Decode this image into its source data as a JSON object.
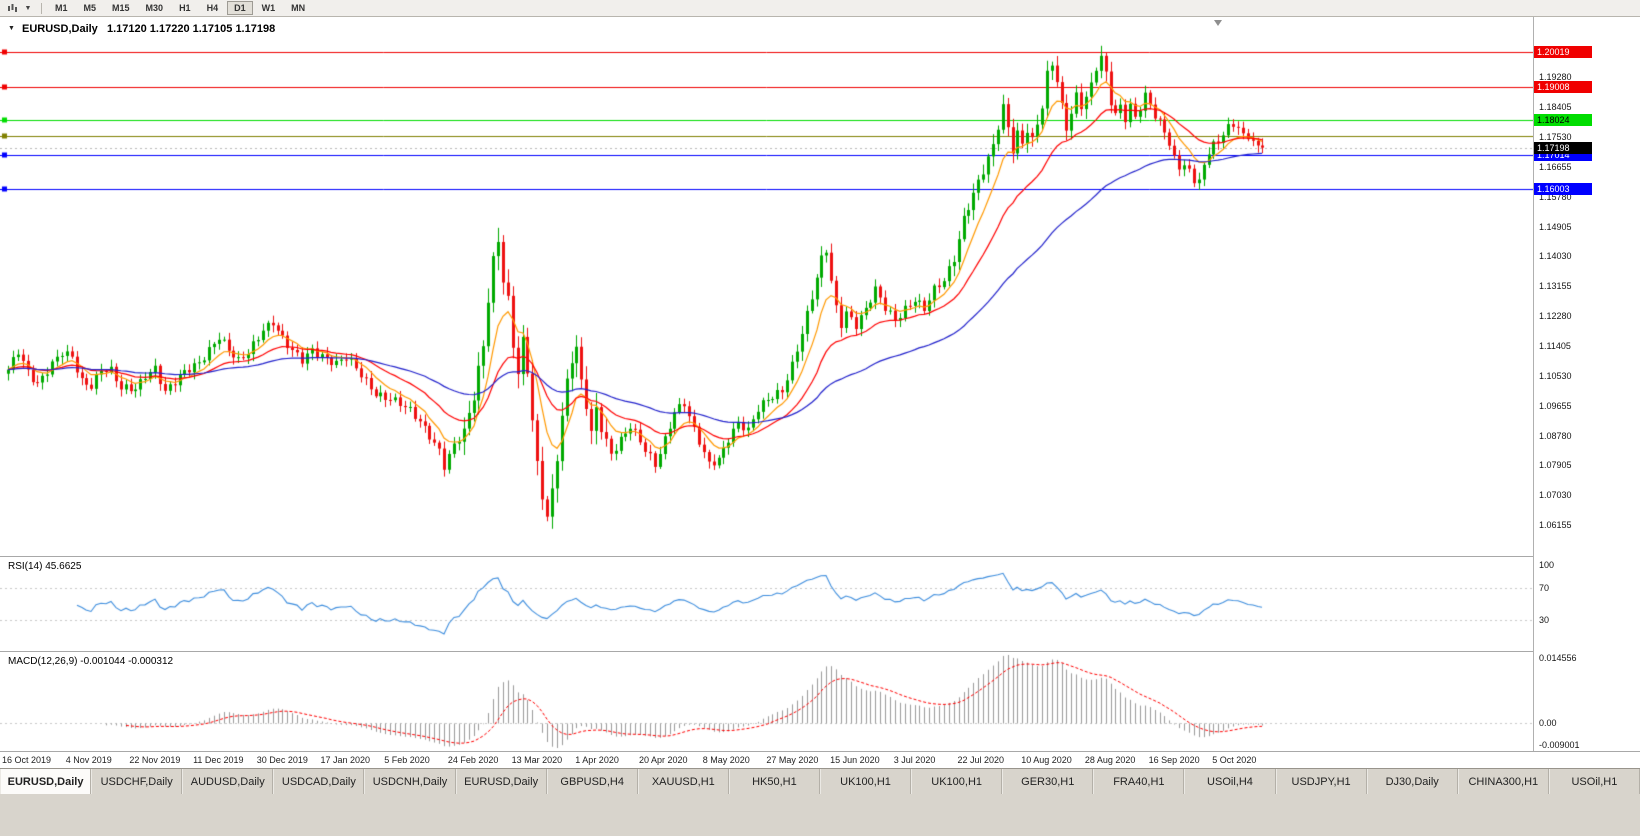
{
  "icons": {
    "toolbar_chart_icon": "candlestick-chart",
    "toolbar_caret": "▼",
    "info_caret": "▼",
    "shift_marker": "triangle-down"
  },
  "toolbar": {
    "timeframes": [
      "M1",
      "M5",
      "M15",
      "M30",
      "H1",
      "H4",
      "D1",
      "W1",
      "MN"
    ],
    "active_timeframe": "D1"
  },
  "chart": {
    "info": {
      "symbol": "EURUSD,Daily",
      "ohlc": "1.17120 1.17220 1.17105 1.17198"
    }
  },
  "chart_data": {
    "type": "candlestick",
    "title": "EURUSD,Daily",
    "ohlc_display": {
      "open": "1.17120",
      "high": "1.17220",
      "low": "1.17105",
      "close": "1.17198"
    },
    "num_candles": 257,
    "bars_per_label": 13,
    "x_labels": [
      "16 Oct 2019",
      "4 Nov 2019",
      "22 Nov 2019",
      "11 Dec 2019",
      "30 Dec 2019",
      "17 Jan 2020",
      "5 Feb 2020",
      "24 Feb 2020",
      "13 Mar 2020",
      "1 Apr 2020",
      "20 Apr 2020",
      "8 May 2020",
      "27 May 2020",
      "15 Jun 2020",
      "3 Jul 2020",
      "22 Jul 2020",
      "10 Aug 2020",
      "28 Aug 2020",
      "16 Sep 2020",
      "5 Oct 2020"
    ],
    "price_axis": {
      "top_price": 1.2105,
      "bottom_price": 1.0525,
      "ticks": [
        "1.19280",
        "1.18405",
        "1.17530",
        "1.16655",
        "1.15780",
        "1.14905",
        "1.14030",
        "1.13155",
        "1.12280",
        "1.11405",
        "1.10530",
        "1.09655",
        "1.08780",
        "1.07905",
        "1.07030",
        "1.06155"
      ]
    },
    "hlines": [
      {
        "price": 1.20019,
        "label": "1.20019",
        "color": "#F00000",
        "text": "#ffffff"
      },
      {
        "price": 1.19008,
        "label": "1.19008",
        "color": "#F00000",
        "text": "#ffffff"
      },
      {
        "price": 1.18024,
        "label": "1.18024",
        "color": "#00DD00",
        "text": "#000000"
      },
      {
        "price": 1.1756,
        "label": null,
        "color": "#808000",
        "text": "#ffffff"
      },
      {
        "price": 1.17014,
        "label": "1.17014",
        "color": "#0000FF",
        "text": "#ffffff"
      },
      {
        "price": 1.16003,
        "label": "1.16003",
        "color": "#0000FF",
        "text": "#ffffff"
      }
    ],
    "current_price": {
      "value": 1.17198,
      "label": "1.17198",
      "flag_bg": "#000000",
      "flag_text": "#ffffff"
    },
    "candle_colors": {
      "up": "#00AA00",
      "down": "#EE1111"
    },
    "moving_averages": [
      {
        "period": 8,
        "color": "#FF9900"
      },
      {
        "period": 21,
        "color": "#FF0000"
      },
      {
        "period": 55,
        "color": "#2222CC"
      }
    ],
    "close_anchors": [
      [
        0,
        1.1065
      ],
      [
        2,
        1.1125
      ],
      [
        4,
        1.107
      ],
      [
        6,
        1.1035
      ],
      [
        9,
        1.1085
      ],
      [
        11,
        1.1115
      ],
      [
        13,
        1.1105
      ],
      [
        15,
        1.104
      ],
      [
        17,
        1.103
      ],
      [
        19,
        1.1075
      ],
      [
        21,
        1.1065
      ],
      [
        23,
        1.101
      ],
      [
        26,
        1.1015
      ],
      [
        28,
        1.106
      ],
      [
        30,
        1.108
      ],
      [
        32,
        1.1005
      ],
      [
        34,
        1.103
      ],
      [
        36,
        1.106
      ],
      [
        39,
        1.1095
      ],
      [
        41,
        1.1135
      ],
      [
        43,
        1.117
      ],
      [
        45,
        1.1125
      ],
      [
        47,
        1.109
      ],
      [
        49,
        1.112
      ],
      [
        52,
        1.1195
      ],
      [
        54,
        1.1215
      ],
      [
        56,
        1.116
      ],
      [
        58,
        1.112
      ],
      [
        60,
        1.1095
      ],
      [
        62,
        1.113
      ],
      [
        65,
        1.111
      ],
      [
        67,
        1.109
      ],
      [
        69,
        1.1105
      ],
      [
        71,
        1.107
      ],
      [
        73,
        1.1035
      ],
      [
        75,
        1.1005
      ],
      [
        78,
        1.099
      ],
      [
        80,
        1.097
      ],
      [
        82,
        1.0945
      ],
      [
        84,
        1.0915
      ],
      [
        86,
        1.088
      ],
      [
        88,
        1.084
      ],
      [
        89,
        1.0795
      ],
      [
        91,
        1.085
      ],
      [
        93,
        1.0885
      ],
      [
        95,
        1.0985
      ],
      [
        96,
        1.107
      ],
      [
        97,
        1.114
      ],
      [
        98,
        1.128
      ],
      [
        99,
        1.14
      ],
      [
        100,
        1.1455
      ],
      [
        101,
        1.134
      ],
      [
        102,
        1.128
      ],
      [
        103,
        1.114
      ],
      [
        104,
        1.106
      ],
      [
        105,
        1.115
      ],
      [
        106,
        1.106
      ],
      [
        107,
        1.092
      ],
      [
        108,
        1.079
      ],
      [
        109,
        1.07
      ],
      [
        110,
        1.0645
      ],
      [
        111,
        1.072
      ],
      [
        112,
        1.082
      ],
      [
        113,
        1.094
      ],
      [
        114,
        1.104
      ],
      [
        115,
        1.11
      ],
      [
        116,
        1.113
      ],
      [
        117,
        1.103
      ],
      [
        118,
        1.096
      ],
      [
        119,
        1.088
      ],
      [
        120,
        1.0955
      ],
      [
        121,
        1.09
      ],
      [
        123,
        1.083
      ],
      [
        125,
        1.087
      ],
      [
        127,
        1.0905
      ],
      [
        129,
        1.0855
      ],
      [
        130,
        1.083
      ],
      [
        132,
        1.079
      ],
      [
        134,
        1.087
      ],
      [
        136,
        1.0955
      ],
      [
        138,
        1.0975
      ],
      [
        140,
        1.089
      ],
      [
        142,
        1.082
      ],
      [
        143,
        1.079
      ],
      [
        145,
        1.081
      ],
      [
        147,
        1.0875
      ],
      [
        149,
        1.092
      ],
      [
        151,
        1.089
      ],
      [
        153,
        1.095
      ],
      [
        155,
        1.098
      ],
      [
        158,
        1.1015
      ],
      [
        160,
        1.109
      ],
      [
        162,
        1.118
      ],
      [
        164,
        1.128
      ],
      [
        166,
        1.139
      ],
      [
        167,
        1.142
      ],
      [
        168,
        1.133
      ],
      [
        169,
        1.1255
      ],
      [
        170,
        1.121
      ],
      [
        171,
        1.1245
      ],
      [
        173,
        1.1205
      ],
      [
        175,
        1.1245
      ],
      [
        177,
        1.13
      ],
      [
        179,
        1.125
      ],
      [
        181,
        1.122
      ],
      [
        183,
        1.1255
      ],
      [
        185,
        1.128
      ],
      [
        187,
        1.1245
      ],
      [
        189,
        1.13
      ],
      [
        191,
        1.133
      ],
      [
        193,
        1.14
      ],
      [
        195,
        1.152
      ],
      [
        197,
        1.159
      ],
      [
        199,
        1.165
      ],
      [
        201,
        1.172
      ],
      [
        203,
        1.184
      ],
      [
        204,
        1.178
      ],
      [
        205,
        1.172
      ],
      [
        206,
        1.177
      ],
      [
        207,
        1.174
      ],
      [
        208,
        1.178
      ],
      [
        209,
        1.1745
      ],
      [
        210,
        1.179
      ],
      [
        211,
        1.184
      ],
      [
        212,
        1.193
      ],
      [
        213,
        1.196
      ],
      [
        214,
        1.1915
      ],
      [
        215,
        1.184
      ],
      [
        216,
        1.178
      ],
      [
        217,
        1.183
      ],
      [
        218,
        1.188
      ],
      [
        219,
        1.185
      ],
      [
        221,
        1.1905
      ],
      [
        222,
        1.1955
      ],
      [
        223,
        1.1985
      ],
      [
        224,
        1.193
      ],
      [
        225,
        1.185
      ],
      [
        226,
        1.1815
      ],
      [
        227,
        1.184
      ],
      [
        228,
        1.181
      ],
      [
        229,
        1.185
      ],
      [
        230,
        1.1815
      ],
      [
        232,
        1.188
      ],
      [
        234,
        1.1815
      ],
      [
        235,
        1.179
      ],
      [
        236,
        1.176
      ],
      [
        237,
        1.173
      ],
      [
        238,
        1.1685
      ],
      [
        239,
        1.166
      ],
      [
        240,
        1.168
      ],
      [
        241,
        1.1655
      ],
      [
        242,
        1.163
      ],
      [
        243,
        1.164
      ],
      [
        244,
        1.1665
      ],
      [
        245,
        1.171
      ],
      [
        246,
        1.174
      ],
      [
        247,
        1.172
      ],
      [
        248,
        1.176
      ],
      [
        249,
        1.1785
      ],
      [
        250,
        1.177
      ],
      [
        251,
        1.179
      ],
      [
        252,
        1.1765
      ],
      [
        253,
        1.1745
      ],
      [
        254,
        1.176
      ],
      [
        255,
        1.173
      ],
      [
        256,
        1.172
      ]
    ],
    "rsi": {
      "label": "RSI(14) 45.6625",
      "period": 14,
      "last": "45.6625",
      "levels": [
        "100",
        "70",
        "30"
      ],
      "line_color": "#3E8EDE"
    },
    "macd": {
      "label": "MACD(12,26,9) -0.001044 -0.000312",
      "fast": 12,
      "slow": 26,
      "signal": 9,
      "last_main": "-0.001044",
      "last_signal": "-0.000312",
      "axis_ticks": [
        "0.014556",
        "0.00",
        "-0.009001"
      ],
      "bar_color": "#9A9A9A",
      "signal_color": "#FF0000"
    }
  },
  "tabs": {
    "items": [
      {
        "label": "EURUSD,Daily",
        "active": true
      },
      {
        "label": "USDCHF,Daily",
        "active": false
      },
      {
        "label": "AUDUSD,Daily",
        "active": false
      },
      {
        "label": "USDCAD,Daily",
        "active": false
      },
      {
        "label": "USDCNH,Daily",
        "active": false
      },
      {
        "label": "EURUSD,Daily",
        "active": false
      },
      {
        "label": "GBPUSD,H4",
        "active": false
      },
      {
        "label": "XAUUSD,H1",
        "active": false
      },
      {
        "label": "HK50,H1",
        "active": false
      },
      {
        "label": "UK100,H1",
        "active": false
      },
      {
        "label": "UK100,H1",
        "active": false
      },
      {
        "label": "GER30,H1",
        "active": false
      },
      {
        "label": "FRA40,H1",
        "active": false
      },
      {
        "label": "USOil,H4",
        "active": false
      },
      {
        "label": "USDJPY,H1",
        "active": false
      },
      {
        "label": "DJ30,Daily",
        "active": false
      },
      {
        "label": "CHINA300,H1",
        "active": false
      },
      {
        "label": "USOil,H1",
        "active": false
      }
    ]
  }
}
